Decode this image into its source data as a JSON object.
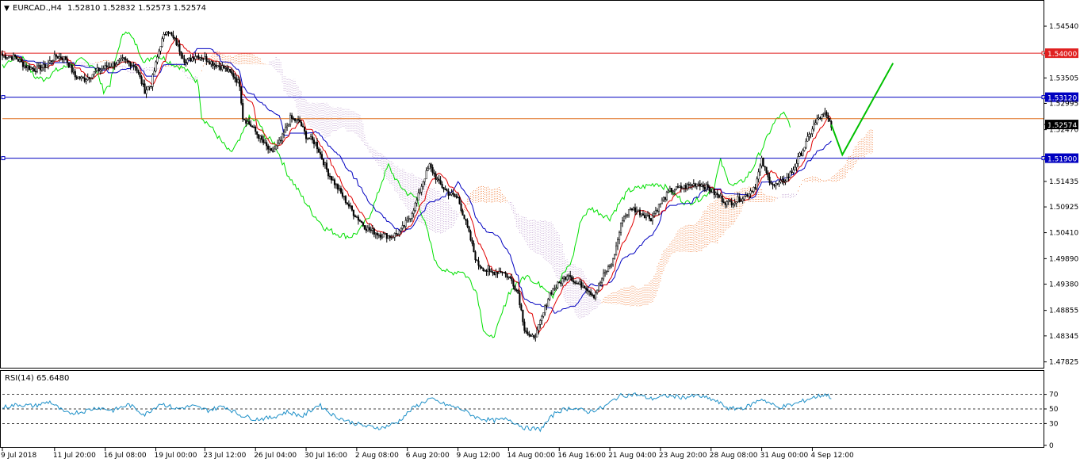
{
  "header": {
    "symbol": "EURCAD.,H4",
    "ohlc": "1.52810 1.52832 1.52573 1.52574"
  },
  "rsi_header": "RSI(14) 65.6480",
  "colors": {
    "background": "#ffffff",
    "frame": "#000000",
    "bull_candle": "#ffffff",
    "bear_candle": "#000000",
    "tenkan": "#e00000",
    "kijun": "#0000c0",
    "chikou": "#00e000",
    "senkou_a_cloud": "#f08040",
    "senkou_b_cloud": "#c0a0d0",
    "resistance_red": "#e02020",
    "support_blue": "#0000c0",
    "orange_line": "#e07020",
    "current_price_bg": "#000000",
    "rsi": "#1e90c8",
    "forecast": "#00c000"
  },
  "chart_data": [
    {
      "type": "candlestick",
      "title": "EURCAD.,H4",
      "indicators": [
        "Ichimoku Kinko Hyo (Tenkan-sen, Kijun-sen, Chikou Span, Kumo cloud)"
      ],
      "ylim": [
        1.4774,
        1.5481
      ],
      "y_ticks": [
        "1.54540",
        "1.54000",
        "1.53505",
        "1.53120",
        "1.52995",
        "1.52574",
        "1.52470",
        "1.51900",
        "1.51435",
        "1.50925",
        "1.50410",
        "1.49890",
        "1.49380",
        "1.48855",
        "1.48345",
        "1.47825"
      ],
      "x_ticks": [
        "9 Jul 2018",
        "11 Jul 20:00",
        "16 Jul 08:00",
        "19 Jul 00:00",
        "23 Jul 12:00",
        "26 Jul 04:00",
        "30 Jul 16:00",
        "2 Aug 08:00",
        "6 Aug 20:00",
        "9 Aug 12:00",
        "14 Aug 00:00",
        "16 Aug 16:00",
        "21 Aug 04:00",
        "23 Aug 20:00",
        "28 Aug 08:00",
        "31 Aug 00:00",
        "4 Sep 12:00"
      ],
      "horizontal_levels": [
        {
          "label": "1.54000",
          "value": 1.54,
          "color": "#e02020"
        },
        {
          "label": "1.53120",
          "value": 1.5312,
          "color": "#0000c0"
        },
        {
          "label": "1.52574",
          "value": 1.52574,
          "color": "#000000",
          "current": true
        },
        {
          "label": "1.51900",
          "value": 1.519,
          "color": "#0000c0"
        }
      ],
      "orange_line_value": 1.5269,
      "close_path": [
        [
          0,
          1.5395
        ],
        [
          8,
          1.5392
        ],
        [
          14,
          1.5375
        ],
        [
          20,
          1.5368
        ],
        [
          26,
          1.5372
        ],
        [
          34,
          1.5394
        ],
        [
          40,
          1.5389
        ],
        [
          46,
          1.5353
        ],
        [
          52,
          1.5348
        ],
        [
          60,
          1.5365
        ],
        [
          68,
          1.5375
        ],
        [
          76,
          1.5386
        ],
        [
          84,
          1.5375
        ],
        [
          90,
          1.5325
        ],
        [
          94,
          1.5338
        ],
        [
          100,
          1.5418
        ],
        [
          104,
          1.5448
        ],
        [
          110,
          1.542
        ],
        [
          116,
          1.5381
        ],
        [
          122,
          1.5396
        ],
        [
          128,
          1.539
        ],
        [
          134,
          1.5378
        ],
        [
          140,
          1.5371
        ],
        [
          146,
          1.5355
        ],
        [
          150,
          1.5338
        ],
        [
          152,
          1.5272
        ],
        [
          158,
          1.5252
        ],
        [
          164,
          1.5225
        ],
        [
          170,
          1.52
        ],
        [
          176,
          1.5225
        ],
        [
          182,
          1.527
        ],
        [
          188,
          1.5262
        ],
        [
          192,
          1.5234
        ],
        [
          198,
          1.522
        ],
        [
          206,
          1.516
        ],
        [
          214,
          1.512
        ],
        [
          222,
          1.508
        ],
        [
          230,
          1.505
        ],
        [
          238,
          1.5038
        ],
        [
          246,
          1.5033
        ],
        [
          252,
          1.5045
        ],
        [
          258,
          1.5075
        ],
        [
          262,
          1.5105
        ],
        [
          266,
          1.5145
        ],
        [
          270,
          1.5175
        ],
        [
          276,
          1.514
        ],
        [
          282,
          1.512
        ],
        [
          288,
          1.511
        ],
        [
          294,
          1.505
        ],
        [
          300,
          1.498
        ],
        [
          308,
          1.496
        ],
        [
          316,
          1.4965
        ],
        [
          322,
          1.4945
        ],
        [
          326,
          1.492
        ],
        [
          330,
          1.485
        ],
        [
          334,
          1.4828
        ],
        [
          338,
          1.4842
        ],
        [
          342,
          1.488
        ],
        [
          346,
          1.492
        ],
        [
          352,
          1.494
        ],
        [
          358,
          1.496
        ],
        [
          362,
          1.494
        ],
        [
          368,
          1.4935
        ],
        [
          374,
          1.4915
        ],
        [
          380,
          1.4955
        ],
        [
          386,
          1.4985
        ],
        [
          392,
          1.507
        ],
        [
          398,
          1.509
        ],
        [
          404,
          1.508
        ],
        [
          410,
          1.507
        ],
        [
          416,
          1.51
        ],
        [
          422,
          1.5125
        ],
        [
          428,
          1.513
        ],
        [
          434,
          1.5135
        ],
        [
          440,
          1.514
        ],
        [
          446,
          1.513
        ],
        [
          452,
          1.5115
        ],
        [
          458,
          1.51
        ],
        [
          464,
          1.5105
        ],
        [
          470,
          1.5115
        ],
        [
          476,
          1.5135
        ],
        [
          480,
          1.5185
        ],
        [
          484,
          1.515
        ],
        [
          488,
          1.5135
        ],
        [
          492,
          1.514
        ],
        [
          496,
          1.515
        ],
        [
          500,
          1.5168
        ],
        [
          504,
          1.5195
        ],
        [
          508,
          1.522
        ],
        [
          512,
          1.525
        ],
        [
          516,
          1.527
        ],
        [
          520,
          1.5278
        ],
        [
          524,
          1.5257
        ]
      ],
      "forecast_path": [
        [
          524,
          1.5257
        ],
        [
          531,
          1.5197
        ],
        [
          563,
          1.538
        ]
      ],
      "rsi": {
        "name": "RSI(14)",
        "value": 65.648,
        "levels": [
          70,
          50,
          30
        ],
        "ylim": [
          0,
          100
        ],
        "y_ticks": [
          "70",
          "50",
          "30",
          "0"
        ],
        "path": [
          [
            0,
            52
          ],
          [
            10,
            56
          ],
          [
            20,
            54
          ],
          [
            30,
            60
          ],
          [
            40,
            44
          ],
          [
            50,
            46
          ],
          [
            60,
            52
          ],
          [
            70,
            48
          ],
          [
            80,
            56
          ],
          [
            90,
            42
          ],
          [
            100,
            58
          ],
          [
            110,
            50
          ],
          [
            120,
            54
          ],
          [
            130,
            48
          ],
          [
            140,
            54
          ],
          [
            150,
            42
          ],
          [
            160,
            36
          ],
          [
            170,
            38
          ],
          [
            180,
            46
          ],
          [
            190,
            40
          ],
          [
            200,
            56
          ],
          [
            210,
            40
          ],
          [
            220,
            32
          ],
          [
            230,
            26
          ],
          [
            240,
            24
          ],
          [
            250,
            32
          ],
          [
            260,
            52
          ],
          [
            270,
            64
          ],
          [
            280,
            56
          ],
          [
            290,
            50
          ],
          [
            300,
            38
          ],
          [
            310,
            34
          ],
          [
            320,
            36
          ],
          [
            330,
            24
          ],
          [
            340,
            22
          ],
          [
            350,
            46
          ],
          [
            360,
            52
          ],
          [
            370,
            46
          ],
          [
            380,
            52
          ],
          [
            390,
            68
          ],
          [
            400,
            70
          ],
          [
            410,
            64
          ],
          [
            420,
            68
          ],
          [
            430,
            66
          ],
          [
            440,
            68
          ],
          [
            450,
            62
          ],
          [
            460,
            50
          ],
          [
            470,
            52
          ],
          [
            480,
            64
          ],
          [
            490,
            52
          ],
          [
            500,
            56
          ],
          [
            510,
            64
          ],
          [
            520,
            70
          ],
          [
            524,
            66
          ]
        ]
      }
    }
  ]
}
